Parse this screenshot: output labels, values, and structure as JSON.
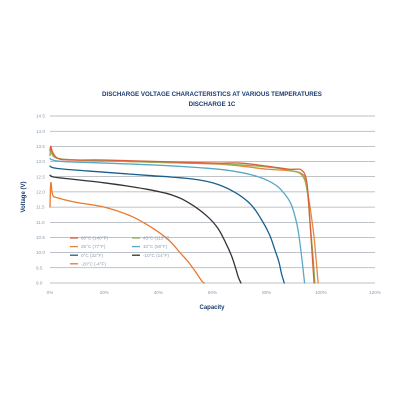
{
  "chart_data": {
    "type": "line",
    "title": "DISCHARGE VOLTAGE CHARACTERISTICS AT VARIOUS TEMPERATURES",
    "subtitle": "DISCHARGE 1C",
    "xlabel": "Capacity",
    "ylabel": "Voltage (V)",
    "xlim": [
      0,
      120
    ],
    "ylim": [
      9.0,
      14.5
    ],
    "x_ticks": [
      "0%",
      "20%",
      "40%",
      "60%",
      "80%",
      "100%",
      "120%"
    ],
    "y_ticks": [
      "9.0",
      "9.5",
      "10.0",
      "10.5",
      "11.0",
      "11.5",
      "12.0",
      "12.5",
      "13.0",
      "13.5",
      "14.0",
      "14.5"
    ],
    "grid": "horizontal",
    "legend_position": "lower-left",
    "series": [
      {
        "name": "60°C (140°F)",
        "color": "#d9603b",
        "x": [
          0,
          0.3,
          1,
          3,
          8,
          20,
          40,
          60,
          70,
          80,
          88,
          92,
          93,
          94,
          95,
          96,
          97.5
        ],
        "y": [
          13.35,
          13.5,
          13.3,
          13.1,
          13.05,
          13.05,
          13.0,
          12.95,
          12.95,
          12.85,
          12.75,
          12.75,
          12.7,
          12.6,
          12.2,
          11.0,
          9.0
        ]
      },
      {
        "name": "45°C (113°F)",
        "color": "#8fb35a",
        "x": [
          0,
          0.3,
          1,
          3,
          10,
          30,
          50,
          65,
          80,
          88,
          93,
          95,
          96,
          97,
          97.8
        ],
        "y": [
          13.2,
          13.35,
          13.2,
          13.1,
          13.05,
          13.0,
          12.95,
          12.92,
          12.82,
          12.72,
          12.55,
          12.0,
          11.0,
          10.0,
          9.0
        ]
      },
      {
        "name": "25°C (77°F)",
        "color": "#e6873a",
        "x": [
          0,
          0.3,
          1,
          3,
          10,
          30,
          50,
          65,
          80,
          88,
          93,
          94.5,
          96,
          97.5,
          99
        ],
        "y": [
          13.2,
          13.4,
          13.25,
          13.1,
          13.05,
          13.0,
          12.95,
          12.9,
          12.75,
          12.7,
          12.6,
          12.3,
          11.5,
          10.5,
          9.0
        ]
      },
      {
        "name": "10°C (50°F)",
        "color": "#5aa7c7",
        "x": [
          0,
          1,
          5,
          20,
          40,
          55,
          65,
          75,
          82,
          86,
          89,
          91,
          92,
          93,
          94
        ],
        "y": [
          13.1,
          13.05,
          13.0,
          12.95,
          12.88,
          12.8,
          12.72,
          12.55,
          12.3,
          12.0,
          11.6,
          11.0,
          10.5,
          9.8,
          9.0
        ]
      },
      {
        "name": "0°C (32°F)",
        "color": "#1a5f8c",
        "x": [
          0,
          1,
          5,
          20,
          35,
          50,
          60,
          68,
          74,
          78,
          81,
          83,
          84.5,
          85.5,
          86.5
        ],
        "y": [
          12.85,
          12.8,
          12.75,
          12.65,
          12.55,
          12.45,
          12.3,
          12.0,
          11.6,
          11.1,
          10.6,
          10.1,
          9.7,
          9.3,
          9.0
        ]
      },
      {
        "name": "-10°C (14°F)",
        "color": "#333333",
        "x": [
          0,
          1,
          5,
          20,
          35,
          45,
          52,
          58,
          62,
          65,
          67,
          68.5,
          69.5,
          70.5
        ],
        "y": [
          12.55,
          12.5,
          12.45,
          12.3,
          12.1,
          11.9,
          11.6,
          11.2,
          10.8,
          10.3,
          9.9,
          9.5,
          9.2,
          9.0
        ]
      },
      {
        "name": "-20°C (-4°F)",
        "color": "#e8792d",
        "x": [
          0,
          0.3,
          1,
          3,
          10,
          20,
          30,
          38,
          44,
          48,
          51,
          53.5,
          55,
          56.2,
          57
        ],
        "y": [
          11.5,
          12.3,
          11.9,
          11.8,
          11.65,
          11.5,
          11.2,
          10.8,
          10.4,
          10.0,
          9.7,
          9.4,
          9.2,
          9.05,
          9.0
        ]
      }
    ]
  }
}
